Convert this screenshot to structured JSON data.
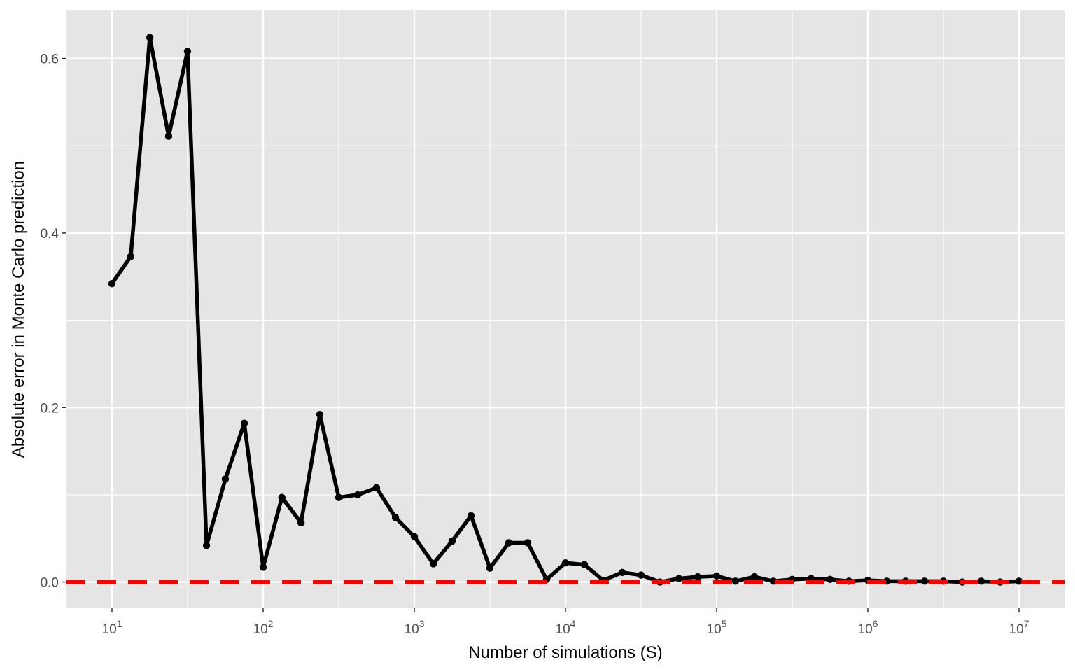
{
  "chart_data": {
    "type": "line",
    "title": "",
    "xlabel": "Number of simulations (S)",
    "ylabel": "Absolute error in Monte Carlo prediction",
    "x_scale": "log10",
    "xlim": [
      5.0,
      20000000
    ],
    "ylim": [
      -0.03,
      0.655
    ],
    "x_ticks": [
      {
        "value": 10,
        "base": "10",
        "exp": "1"
      },
      {
        "value": 100,
        "base": "10",
        "exp": "2"
      },
      {
        "value": 1000,
        "base": "10",
        "exp": "3"
      },
      {
        "value": 10000,
        "base": "10",
        "exp": "4"
      },
      {
        "value": 100000,
        "base": "10",
        "exp": "5"
      },
      {
        "value": 1000000,
        "base": "10",
        "exp": "6"
      },
      {
        "value": 10000000,
        "base": "10",
        "exp": "7"
      }
    ],
    "y_ticks": [
      {
        "value": 0.0,
        "label": "0.0"
      },
      {
        "value": 0.2,
        "label": "0.2"
      },
      {
        "value": 0.4,
        "label": "0.4"
      },
      {
        "value": 0.6,
        "label": "0.6"
      }
    ],
    "grid": true,
    "reference_line": {
      "y": 0,
      "color": "#ff0000",
      "style": "dashed"
    },
    "series": [
      {
        "color": "#000000",
        "x": [
          10,
          13.3,
          17.8,
          23.7,
          31.6,
          42.2,
          56.2,
          75.0,
          100,
          133,
          178,
          237,
          316,
          422,
          562,
          750,
          1000,
          1334,
          1778,
          2371,
          3162,
          4217,
          5623,
          7499,
          10000,
          13335,
          17783,
          23714,
          31623,
          42170,
          56234,
          74989,
          100000,
          133352,
          177828,
          237137,
          316228,
          421697,
          562341,
          749894,
          1000000,
          1333521,
          1778279,
          2371374,
          3162278,
          4216965,
          5623413,
          7498942,
          10000000
        ],
        "values": [
          0.342,
          0.373,
          0.624,
          0.511,
          0.608,
          0.042,
          0.118,
          0.182,
          0.017,
          0.097,
          0.068,
          0.192,
          0.097,
          0.1,
          0.108,
          0.074,
          0.052,
          0.021,
          0.047,
          0.076,
          0.016,
          0.045,
          0.045,
          0.003,
          0.022,
          0.02,
          0.002,
          0.011,
          0.008,
          0.0,
          0.004,
          0.006,
          0.007,
          0.001,
          0.006,
          0.001,
          0.003,
          0.004,
          0.003,
          0.001,
          0.002,
          0.001,
          0.001,
          0.001,
          0.001,
          0.0,
          0.001,
          0.0,
          0.001
        ]
      }
    ]
  }
}
